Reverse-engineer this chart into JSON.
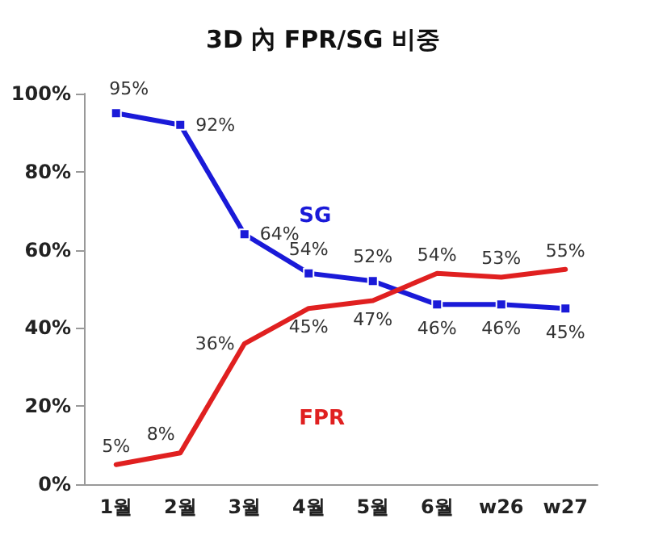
{
  "chart_data": {
    "type": "line",
    "title": "3D 內 FPR/SG 비중",
    "categories": [
      "1월",
      "2월",
      "3월",
      "4월",
      "5월",
      "6월",
      "w26",
      "w27"
    ],
    "series": [
      {
        "name": "SG",
        "color": "#1a1ad8",
        "values": [
          95,
          92,
          64,
          54,
          52,
          46,
          46,
          45
        ],
        "value_labels": [
          "95%",
          "92%",
          "64%",
          "54%",
          "52%",
          "46%",
          "46%",
          "45%"
        ],
        "marker": "square"
      },
      {
        "name": "FPR",
        "color": "#e02020",
        "values": [
          5,
          8,
          36,
          45,
          47,
          54,
          53,
          55
        ],
        "value_labels": [
          "5%",
          "8%",
          "36%",
          "45%",
          "47%",
          "54%",
          "53%",
          "55%"
        ],
        "marker": "none"
      }
    ],
    "ylim": [
      0,
      100
    ],
    "yticks": [
      {
        "value": 0,
        "label": "0%"
      },
      {
        "value": 20,
        "label": "20%"
      },
      {
        "value": 40,
        "label": "40%"
      },
      {
        "value": 60,
        "label": "60%"
      },
      {
        "value": 80,
        "label": "80%"
      },
      {
        "value": 100,
        "label": "100%"
      }
    ],
    "grid": false,
    "legend": false,
    "line_style": "solid"
  }
}
